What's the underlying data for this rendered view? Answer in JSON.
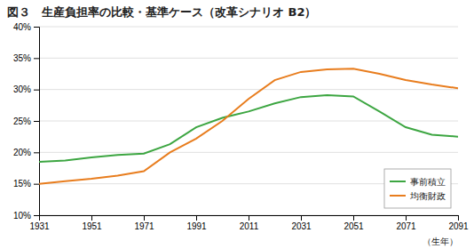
{
  "chart_data": {
    "type": "line",
    "title": "図３　生産負担率の比較・基準ケース（改革シナリオ B2）",
    "x_label": "（生年）",
    "x": [
      1931,
      1941,
      1951,
      1961,
      1971,
      1981,
      1991,
      2001,
      2011,
      2021,
      2031,
      2041,
      2051,
      2061,
      2071,
      2081,
      2091
    ],
    "series": [
      {
        "name": "事前積立",
        "color": "#3da642",
        "values": [
          0.185,
          0.187,
          0.192,
          0.196,
          0.198,
          0.213,
          0.24,
          0.255,
          0.265,
          0.278,
          0.288,
          0.291,
          0.289,
          0.265,
          0.24,
          0.228,
          0.225
        ]
      },
      {
        "name": "均衡財政",
        "color": "#e87d1e",
        "values": [
          0.15,
          0.154,
          0.158,
          0.163,
          0.17,
          0.2,
          0.222,
          0.25,
          0.285,
          0.315,
          0.328,
          0.332,
          0.333,
          0.325,
          0.315,
          0.308,
          0.302
        ]
      }
    ],
    "xlim": [
      1931,
      2091
    ],
    "xticks": [
      1931,
      1951,
      1971,
      1991,
      2011,
      2031,
      2051,
      2071,
      2091
    ],
    "ylim": [
      0.1,
      0.4
    ],
    "yticks": [
      {
        "value": 0.1,
        "label": "10%"
      },
      {
        "value": 0.15,
        "label": "15%"
      },
      {
        "value": 0.2,
        "label": "20%"
      },
      {
        "value": 0.25,
        "label": "25%"
      },
      {
        "value": 0.3,
        "label": "30%"
      },
      {
        "value": 0.35,
        "label": "35%"
      },
      {
        "value": 0.4,
        "label": "40%"
      }
    ],
    "grid": true,
    "legend": "lower right"
  }
}
